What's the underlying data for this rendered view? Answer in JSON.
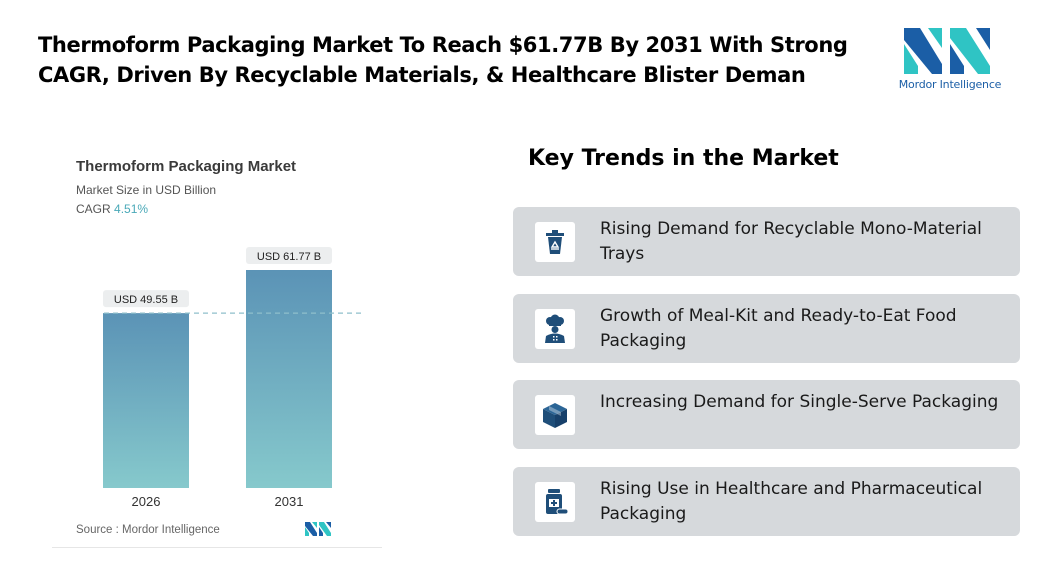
{
  "headline": "Thermoform Packaging Market To Reach $61.77B By 2031 With Strong CAGR, Driven By Recyclable Materials, & Healthcare Blister Deman",
  "brand": {
    "name": "Mordor Intelligence"
  },
  "chart": {
    "title": "Thermoform Packaging Market",
    "subtitle": "Market Size in USD Billion",
    "cagr_label": "CAGR",
    "cagr_value": "4.51%",
    "source": "Source :  Mordor Intelligence"
  },
  "chart_data": {
    "type": "bar",
    "title": "Thermoform Packaging Market",
    "ylabel": "Market Size in USD Billion",
    "categories": [
      "2026",
      "2031"
    ],
    "values": [
      49.55,
      61.77
    ],
    "data_labels": [
      "USD 49.55 B",
      "USD 61.77 B"
    ],
    "ylim": [
      0,
      61.77
    ],
    "grid": false,
    "reference_line": {
      "value": 49.55,
      "style": "dashed"
    },
    "colors": {
      "bar_top": "#5b93b6",
      "bar_bottom": "#86c9cc",
      "reference": "#8fbfcb"
    }
  },
  "trends": {
    "title": "Key Trends in the Market",
    "items": [
      {
        "icon": "recycle-bin-icon",
        "label": "Rising Demand for Recyclable Mono-Material Trays"
      },
      {
        "icon": "chef-icon",
        "label": "Growth of Meal-Kit and Ready-to-Eat Food Packaging"
      },
      {
        "icon": "box-icon",
        "label": "Increasing Demand for Single-Serve Packaging"
      },
      {
        "icon": "medicine-bottle-icon",
        "label": "Rising Use in Healthcare and Pharmaceutical Packaging"
      }
    ]
  },
  "colors": {
    "icon_dark": "#1f4e79",
    "trend_bg": "#d6d9dc",
    "brand_teal": "#2fc4c4",
    "brand_blue": "#1b5ea6"
  }
}
